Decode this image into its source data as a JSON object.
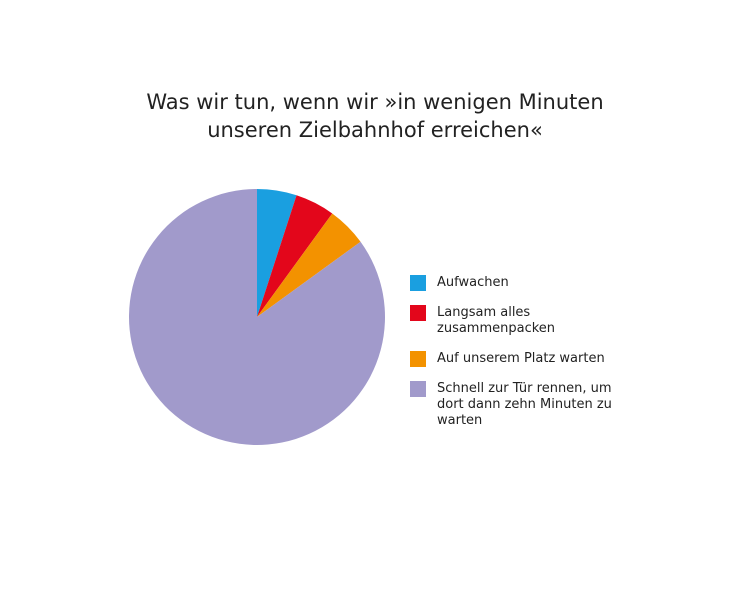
{
  "chart_data": {
    "type": "pie",
    "title": [
      "Was wir tun, wenn wir »in wenigen Minuten",
      "unseren Zielbahnhof erreichen«"
    ],
    "categories": [
      "Aufwachen",
      "Langsam alles zusammenpacken",
      "Auf unserem Platz warten",
      "Schnell zur Tür rennen, um dort dann zehn Minuten zu warten"
    ],
    "values": [
      5,
      5,
      5,
      85
    ],
    "colors": [
      "#1a9fe0",
      "#e3061b",
      "#f39200",
      "#a19acb"
    ],
    "legend": "right"
  }
}
